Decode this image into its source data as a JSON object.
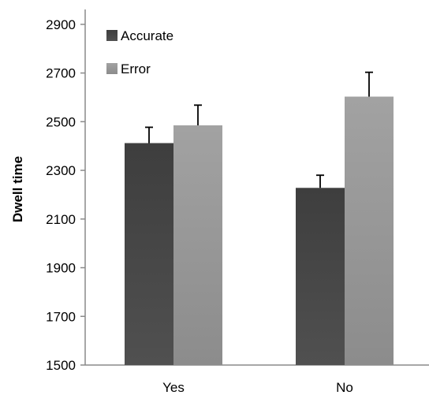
{
  "chart_data": {
    "type": "bar",
    "title": "",
    "xlabel": "",
    "ylabel": "Dwell time",
    "ylim": [
      1500,
      3000
    ],
    "yticks": [
      1500,
      1700,
      1900,
      2100,
      2300,
      2500,
      2700,
      2900
    ],
    "categories": [
      "Yes",
      "No"
    ],
    "series": [
      {
        "name": "Accurate",
        "color": "#474747",
        "values": [
          2412,
          2228
        ],
        "errors": [
          65,
          52
        ]
      },
      {
        "name": "Error",
        "color": "#9a9a9a",
        "values": [
          2485,
          2603
        ],
        "errors": [
          83,
          100
        ]
      }
    ],
    "grid": false,
    "legend_position": "top-left"
  }
}
